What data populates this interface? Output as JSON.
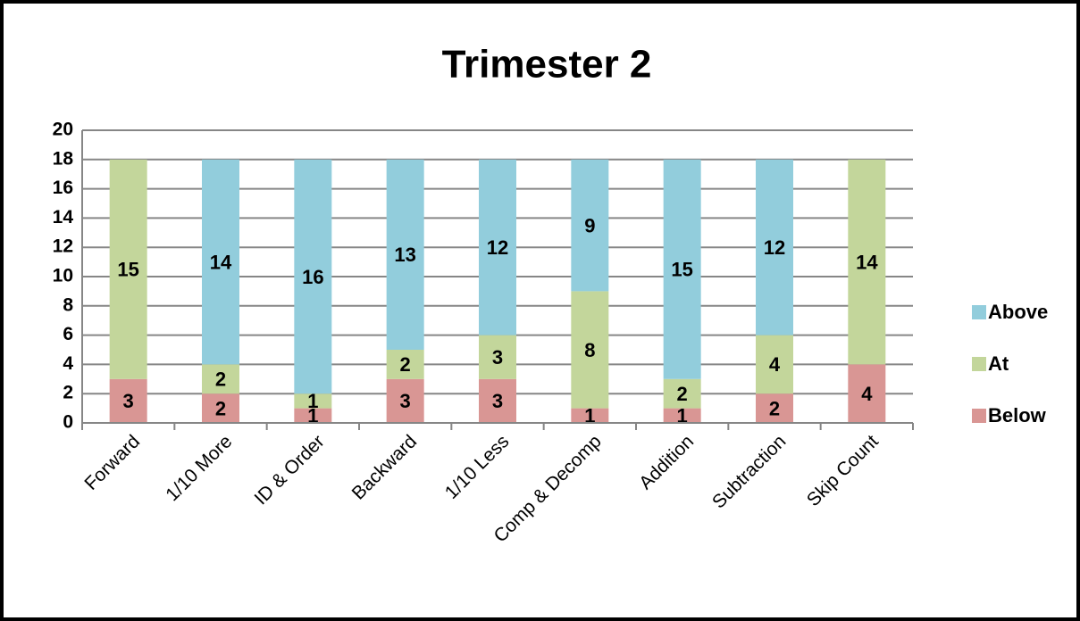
{
  "chart_data": {
    "type": "stacked_bar",
    "title": "Trimester 2",
    "categories": [
      "Forward",
      "1/10 More",
      "ID & Order",
      "Backward",
      "1/10 Less",
      "Comp & Decomp",
      "Addition",
      "Subtraction",
      "Skip Count"
    ],
    "series": [
      {
        "name": "Below",
        "color": "#d99694",
        "values": [
          3,
          2,
          1,
          3,
          3,
          1,
          1,
          2,
          4
        ]
      },
      {
        "name": "At",
        "color": "#c3d69b",
        "values": [
          15,
          2,
          1,
          2,
          3,
          8,
          2,
          4,
          14
        ]
      },
      {
        "name": "Above",
        "color": "#92cddc",
        "values": [
          null,
          14,
          16,
          13,
          12,
          9,
          15,
          12,
          null
        ]
      }
    ],
    "ylim": [
      0,
      20
    ],
    "yticks": [
      0,
      2,
      4,
      6,
      8,
      10,
      12,
      14,
      16,
      18,
      20
    ],
    "grid": true,
    "legend": "right"
  }
}
